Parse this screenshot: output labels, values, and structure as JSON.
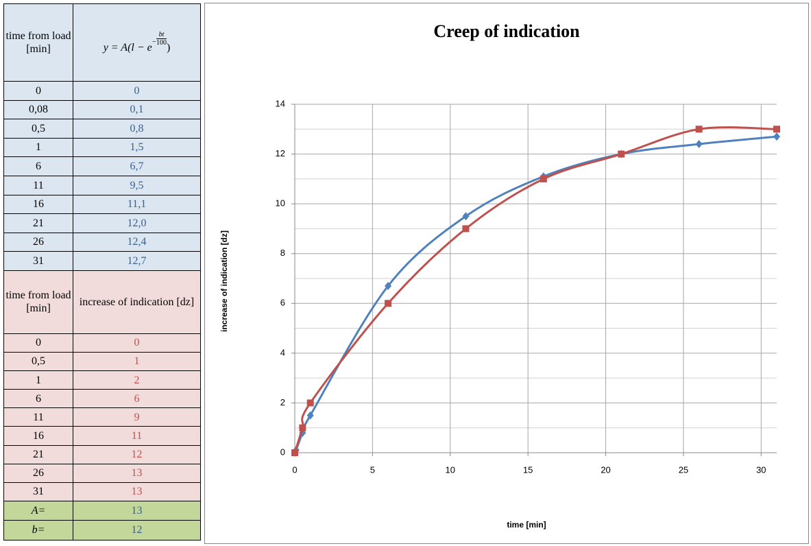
{
  "table": {
    "sections": [
      {
        "header": [
          "time from load [min]",
          {
            "lhs": "y = A",
            "open": "(l − e",
            "sign": "−",
            "num": "bt",
            "den": "100",
            "close": ")"
          }
        ],
        "rows": [
          [
            "0",
            "0"
          ],
          [
            "0,08",
            "0,1"
          ],
          [
            "0,5",
            "0,8"
          ],
          [
            "1",
            "1,5"
          ],
          [
            "6",
            "6,7"
          ],
          [
            "11",
            "9,5"
          ],
          [
            "16",
            "11,1"
          ],
          [
            "21",
            "12,0"
          ],
          [
            "26",
            "12,4"
          ],
          [
            "31",
            "12,7"
          ]
        ]
      },
      {
        "header": [
          "time from load [min]",
          "increase of indication [dz]"
        ],
        "rows": [
          [
            "0",
            "0"
          ],
          [
            "0,5",
            "1"
          ],
          [
            "1",
            "2"
          ],
          [
            "6",
            "6"
          ],
          [
            "11",
            "9"
          ],
          [
            "16",
            "11"
          ],
          [
            "21",
            "12"
          ],
          [
            "26",
            "13"
          ],
          [
            "31",
            "13"
          ]
        ]
      }
    ],
    "params": [
      [
        "A=",
        "13"
      ],
      [
        "b=",
        "12"
      ]
    ]
  },
  "chart_data": {
    "type": "line",
    "title": "Creep of indication",
    "xlabel": "time [min]",
    "ylabel": "increase of indication [dz]",
    "series": [
      {
        "color": "#4f81bd",
        "marker": "diamond",
        "x": [
          0,
          0.08,
          0.5,
          1,
          6,
          11,
          16,
          21,
          26,
          31
        ],
        "values": [
          0,
          0.1,
          0.8,
          1.5,
          6.7,
          9.5,
          11.1,
          12.0,
          12.4,
          12.7
        ]
      },
      {
        "color": "#c0504d",
        "marker": "square",
        "x": [
          0,
          0.5,
          1,
          6,
          11,
          16,
          21,
          26,
          31
        ],
        "values": [
          0,
          1,
          2,
          6,
          9,
          11,
          12,
          13,
          13
        ]
      }
    ],
    "xlim": [
      0,
      31
    ],
    "xticks": [
      0,
      5,
      10,
      15,
      20,
      25,
      30
    ],
    "ylim": [
      0,
      14
    ],
    "yticks": [
      0,
      2,
      4,
      6,
      8,
      10,
      12,
      14
    ],
    "grid": true,
    "smooth": true
  }
}
